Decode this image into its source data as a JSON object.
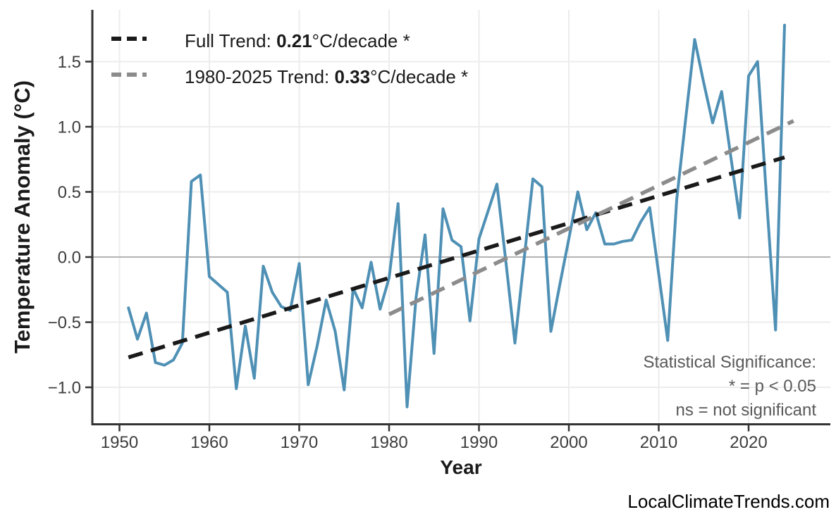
{
  "chart_data": {
    "type": "line",
    "xlabel": "Year",
    "ylabel": "Temperature Anomaly (°C)",
    "xlim": [
      1946.7,
      2029.1
    ],
    "ylim": [
      -1.29,
      1.89
    ],
    "grid": true,
    "legend_position": "upper-left",
    "x_ticks": [
      "1950",
      "1960",
      "1970",
      "1980",
      "1990",
      "2000",
      "2010",
      "2020"
    ],
    "y_ticks": [
      {
        "label": "1.5",
        "value": 1.5
      },
      {
        "label": "1.0",
        "value": 1.0
      },
      {
        "label": "0.5",
        "value": 0.5
      },
      {
        "label": "0.0",
        "value": 0.0
      },
      {
        "label": "−0.5",
        "value": -0.5
      },
      {
        "label": "−1.0",
        "value": -1.0
      }
    ],
    "series": [
      {
        "name": "annual-temperature-anomaly",
        "kind": "line",
        "start_year": 1951,
        "values": [
          -0.39,
          -0.63,
          -0.43,
          -0.81,
          -0.83,
          -0.79,
          -0.66,
          0.58,
          0.63,
          -0.15,
          -0.21,
          -0.27,
          -1.01,
          -0.53,
          -0.93,
          -0.07,
          -0.27,
          -0.38,
          -0.41,
          -0.05,
          -0.98,
          -0.68,
          -0.33,
          -0.57,
          -1.02,
          -0.24,
          -0.39,
          -0.04,
          -0.4,
          -0.16,
          0.41,
          -1.15,
          -0.31,
          0.17,
          -0.74,
          0.37,
          0.13,
          0.08,
          -0.49,
          0.14,
          0.35,
          0.56,
          -0.04,
          -0.66,
          -0.03,
          0.6,
          0.54,
          -0.57,
          -0.21,
          0.14,
          0.5,
          0.21,
          0.34,
          0.1,
          0.1,
          0.12,
          0.13,
          0.27,
          0.38,
          -0.13,
          -0.64,
          0.44,
          1.06,
          1.67,
          1.34,
          1.03,
          1.27,
          0.78,
          0.3,
          1.39,
          1.5,
          0.45,
          -0.56,
          1.78
        ]
      },
      {
        "name": "full-trend",
        "kind": "dashed-trend",
        "x": [
          1951,
          2024
        ],
        "y": [
          -0.77,
          0.765
        ],
        "slope_per_decade": 0.21
      },
      {
        "name": "recent-trend-1980-2025",
        "kind": "dashed-trend",
        "x": [
          1980,
          2025
        ],
        "y": [
          -0.44,
          1.045
        ],
        "slope_per_decade": 0.33
      }
    ],
    "legend": [
      {
        "prefix": "Full Trend: ",
        "value": "0.21",
        "suffix": "°C/decade *"
      },
      {
        "prefix": "1980-2025 Trend: ",
        "value": "0.33",
        "suffix": "°C/decade *"
      }
    ],
    "annotation": {
      "line1": "Statistical Significance:",
      "line2": "* = p < 0.05",
      "line3": "ns = not significant"
    },
    "watermark": "LocalClimateTrends.com",
    "colors": {
      "line": "#4F90B5",
      "trend_full": "#1a1a1a",
      "trend_recent": "#8c8c8c",
      "grid": "#ececec",
      "zero_line": "#b3b3b3",
      "axis": "#333333",
      "tick_label": "#3d3d3d",
      "annotation": "#595959"
    }
  }
}
